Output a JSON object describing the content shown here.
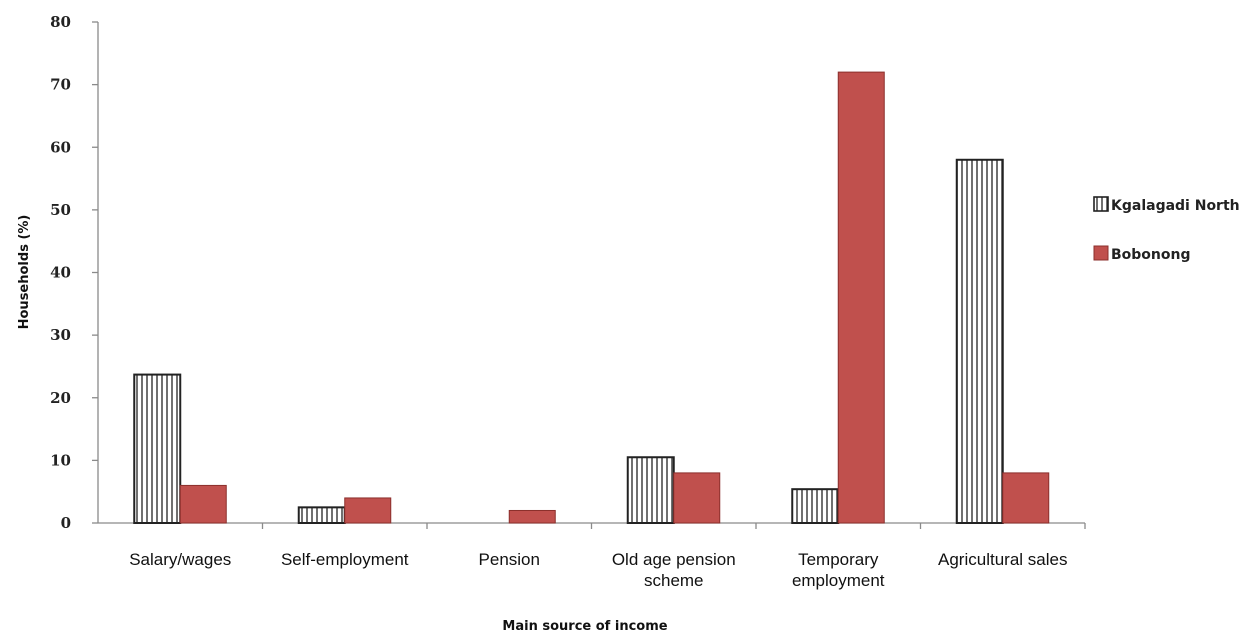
{
  "chart_data": {
    "type": "bar",
    "title": "",
    "xlabel": "Main source of income",
    "ylabel": "Households (%)",
    "ylim": [
      0,
      80
    ],
    "yticks": [
      0,
      10,
      20,
      30,
      40,
      50,
      60,
      70,
      80
    ],
    "grid": false,
    "legend_position": "right",
    "categories": [
      [
        "Salary/wages"
      ],
      [
        "Self-employment"
      ],
      [
        "Pension"
      ],
      [
        "Old age pension",
        "scheme"
      ],
      [
        "Temporary",
        "employment"
      ],
      [
        "Agricultural sales"
      ]
    ],
    "series": [
      {
        "name": "Kgalagadi North",
        "fill": "vertical-stripes",
        "color": "#ffffff",
        "stroke": "#222222",
        "values": [
          23.7,
          2.5,
          0,
          10.5,
          5.4,
          58
        ]
      },
      {
        "name": "Bobonong",
        "fill": "solid",
        "color": "#c0504d",
        "stroke": "#8b2f2c",
        "values": [
          6,
          4,
          2,
          8,
          72,
          8
        ]
      }
    ]
  }
}
